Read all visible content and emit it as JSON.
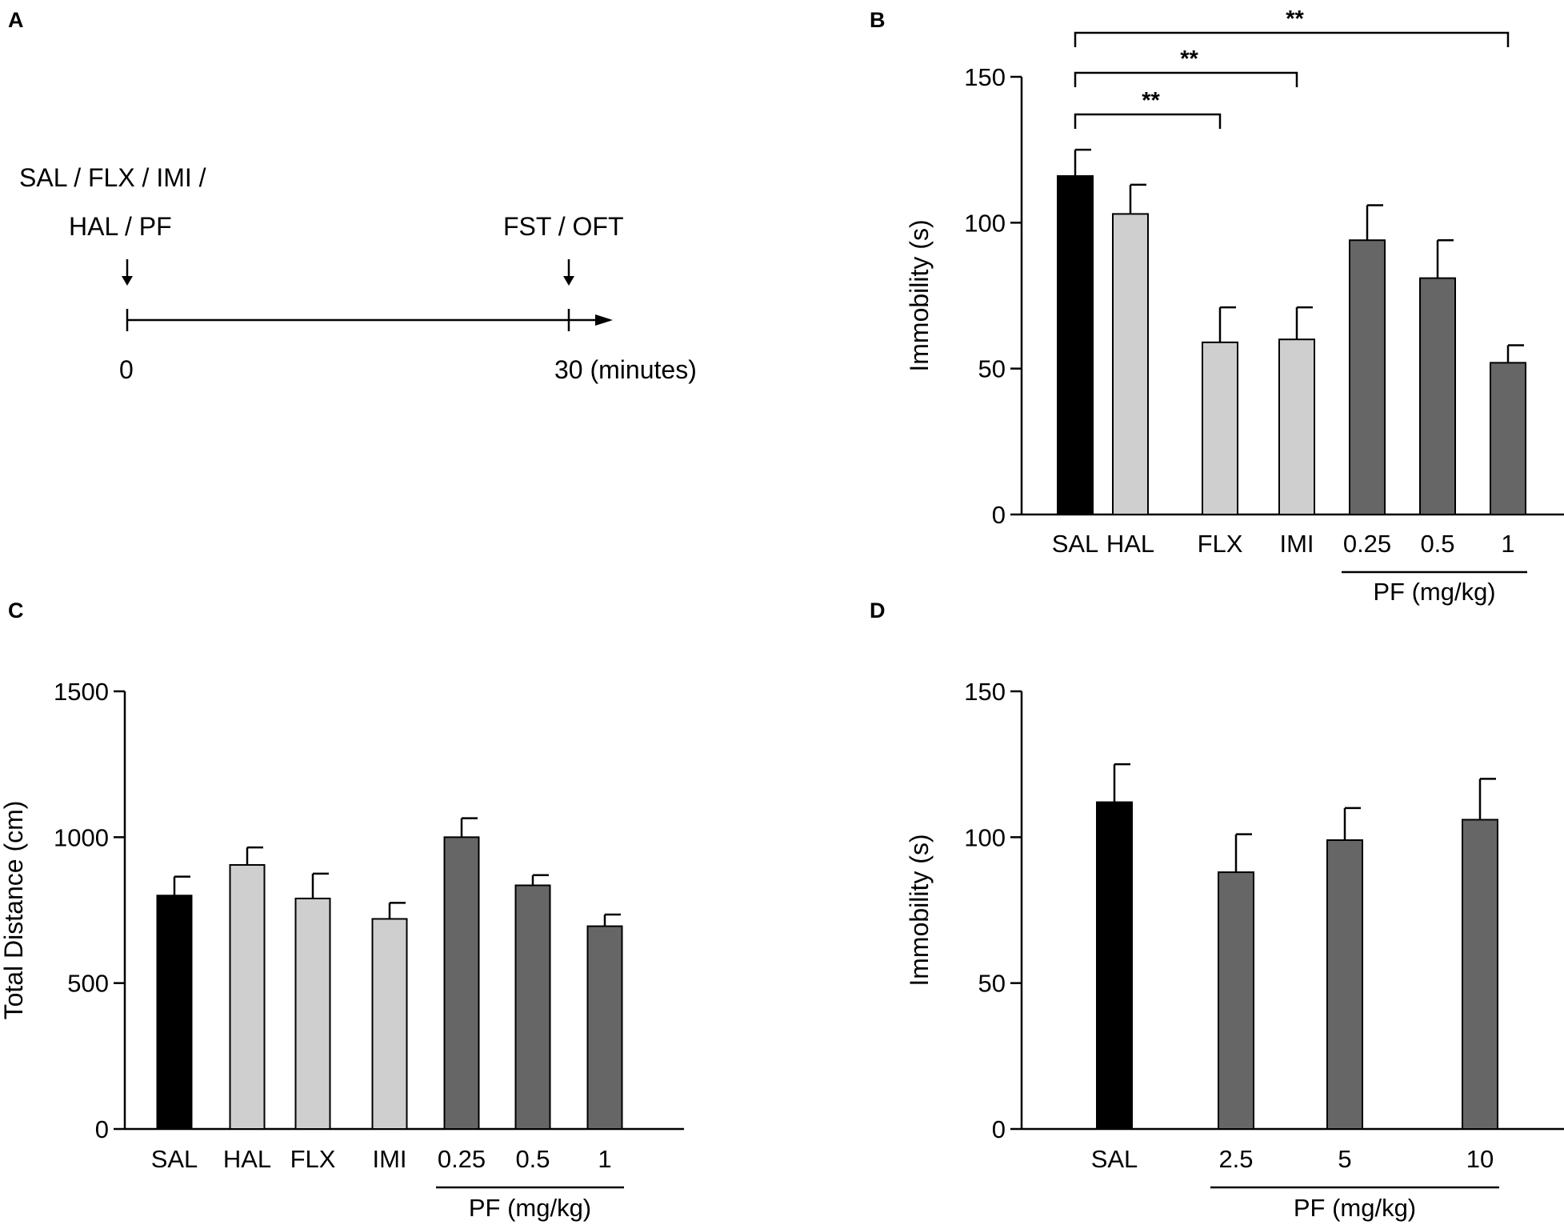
{
  "colors": {
    "saline": "#000000",
    "reference": "#cfcfcf",
    "pf": "#666666",
    "axis": "#000000"
  },
  "panel_a": {
    "letter": "A",
    "treatment_line1": "SAL / FLX / IMI /",
    "treatment_line2": "HAL / PF",
    "test_label": "FST / OFT",
    "start_tick": "0",
    "end_tick": "30 (minutes)"
  },
  "chart_data": [
    {
      "id": "B",
      "type": "bar",
      "ylabel": "Immobility (s)",
      "ylim": [
        0,
        150
      ],
      "yticks": [
        0,
        50,
        100,
        150
      ],
      "categories": [
        "SAL",
        "HAL",
        "FLX",
        "IMI",
        "0.25",
        "0.5",
        "1"
      ],
      "values": [
        116,
        103,
        59,
        60,
        94,
        81,
        52
      ],
      "errors": [
        9,
        10,
        12,
        11,
        12,
        13,
        6
      ],
      "groups": [
        "saline",
        "reference",
        "reference",
        "reference",
        "pf",
        "pf",
        "pf"
      ],
      "group_label": "PF (mg/kg)",
      "group_span": [
        4,
        6
      ],
      "significance": [
        {
          "from": 0,
          "to": 2,
          "label": "**"
        },
        {
          "from": 0,
          "to": 3,
          "label": "**"
        },
        {
          "from": 0,
          "to": 6,
          "label": "**"
        }
      ]
    },
    {
      "id": "C",
      "type": "bar",
      "ylabel": "Total Distance (cm)",
      "ylim": [
        0,
        1500
      ],
      "yticks": [
        0,
        500,
        1000,
        1500
      ],
      "categories": [
        "SAL",
        "HAL",
        "FLX",
        "IMI",
        "0.25",
        "0.5",
        "1"
      ],
      "values": [
        800,
        905,
        790,
        720,
        1000,
        835,
        695
      ],
      "errors": [
        65,
        60,
        85,
        55,
        65,
        35,
        40
      ],
      "groups": [
        "saline",
        "reference",
        "reference",
        "reference",
        "pf",
        "pf",
        "pf"
      ],
      "group_label": "PF (mg/kg)",
      "group_span": [
        4,
        6
      ],
      "significance": []
    },
    {
      "id": "D",
      "type": "bar",
      "ylabel": "Immobility (s)",
      "ylim": [
        0,
        150
      ],
      "yticks": [
        0,
        50,
        100,
        150
      ],
      "categories": [
        "SAL",
        "2.5",
        "5",
        "10"
      ],
      "values": [
        112,
        88,
        99,
        106
      ],
      "errors": [
        13,
        13,
        11,
        14
      ],
      "groups": [
        "saline",
        "pf",
        "pf",
        "pf"
      ],
      "group_label": "PF (mg/kg)",
      "group_span": [
        1,
        3
      ],
      "significance": []
    }
  ]
}
